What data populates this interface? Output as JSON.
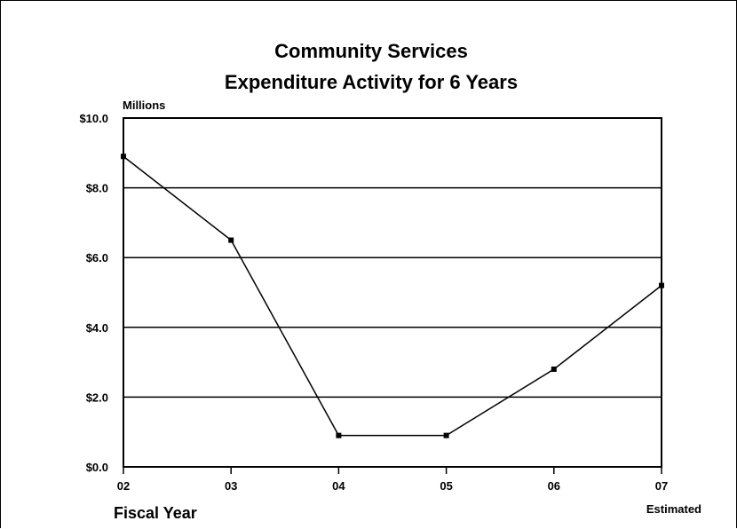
{
  "chart_data": {
    "type": "line",
    "title_lines": [
      "Community Services",
      "Expenditure Activity for 6 Years"
    ],
    "ylabel": "Millions",
    "xlabel": "Fiscal Year",
    "x_note": "Estimated",
    "categories": [
      "02",
      "03",
      "04",
      "05",
      "06",
      "07"
    ],
    "y_ticks": [
      "$0.0",
      "$2.0",
      "$4.0",
      "$6.0",
      "$8.0",
      "$10.0"
    ],
    "y_tick_values": [
      0,
      2,
      4,
      6,
      8,
      10
    ],
    "ylim": [
      0,
      10
    ],
    "grid": true,
    "series": [
      {
        "values": [
          8.9,
          6.5,
          0.9,
          0.9,
          2.8,
          5.2
        ]
      }
    ]
  }
}
